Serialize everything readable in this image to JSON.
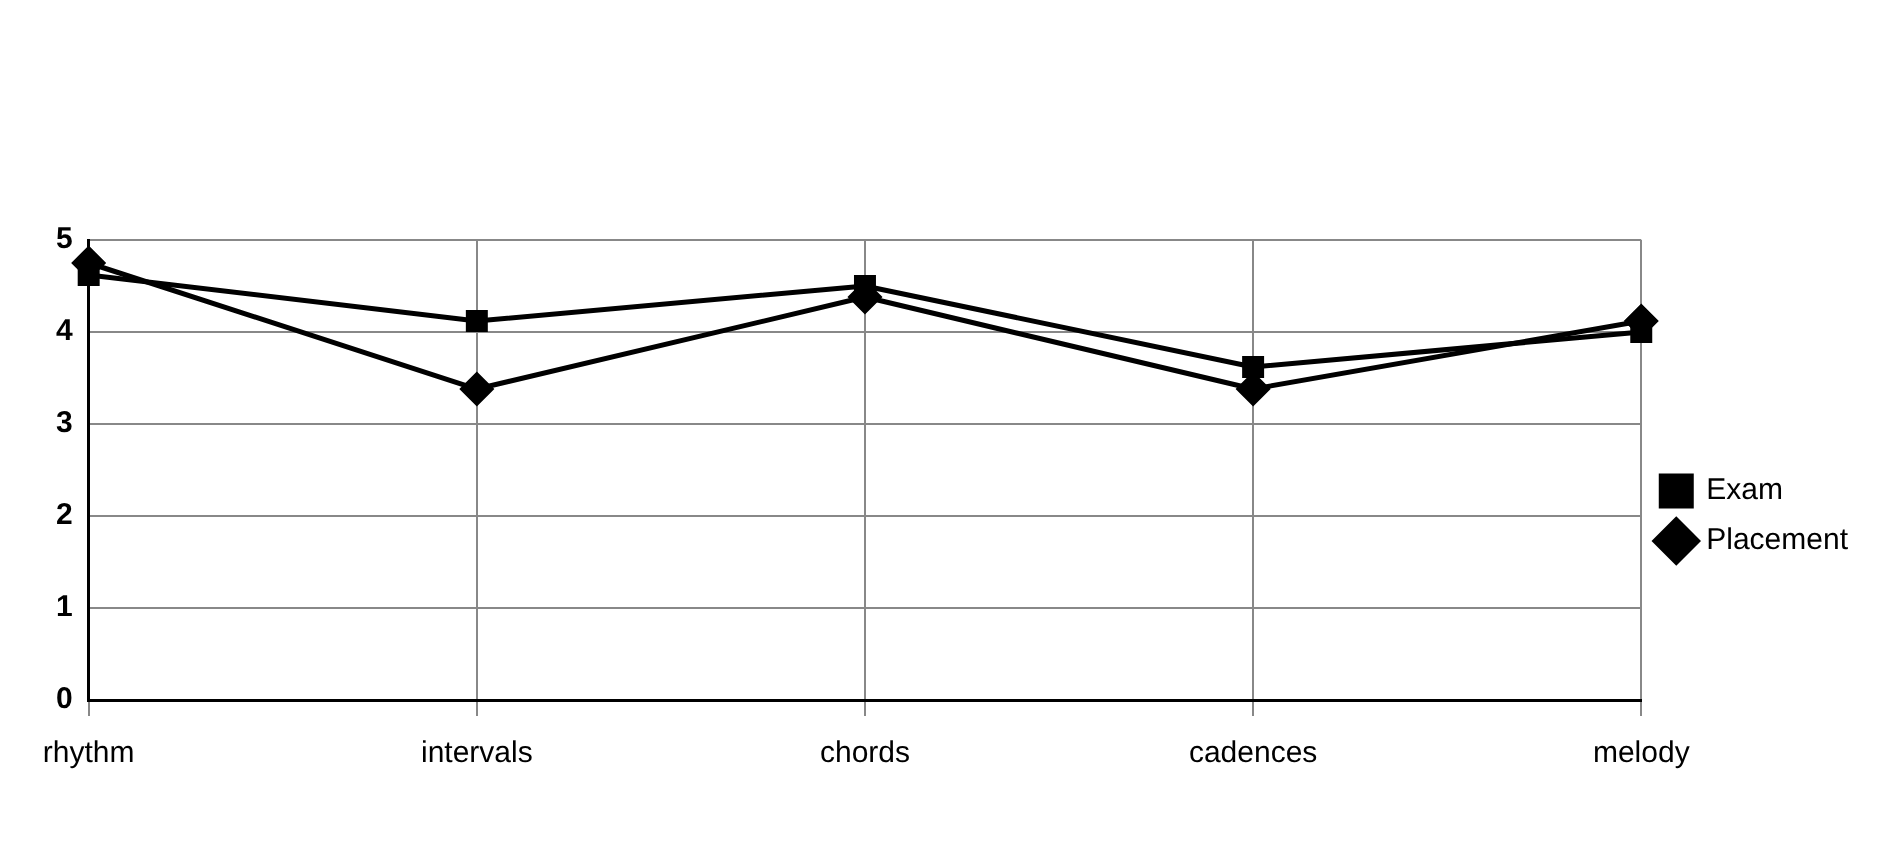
{
  "chart_data": {
    "type": "line",
    "categories": [
      "rhythm",
      "intervals",
      "chords",
      "cadences",
      "melody"
    ],
    "series": [
      {
        "name": "Placement",
        "color": "#000000",
        "marker": "diamond",
        "values": [
          4.75,
          3.38,
          4.38,
          3.38,
          4.12
        ]
      },
      {
        "name": "Exam",
        "color": "#000000",
        "marker": "square",
        "values": [
          4.62,
          4.12,
          4.5,
          3.62,
          4.0
        ]
      }
    ],
    "ylim": [
      0,
      5
    ],
    "yticks": [
      0,
      1,
      2,
      3,
      4,
      5
    ],
    "grid": true,
    "legend": "right"
  }
}
